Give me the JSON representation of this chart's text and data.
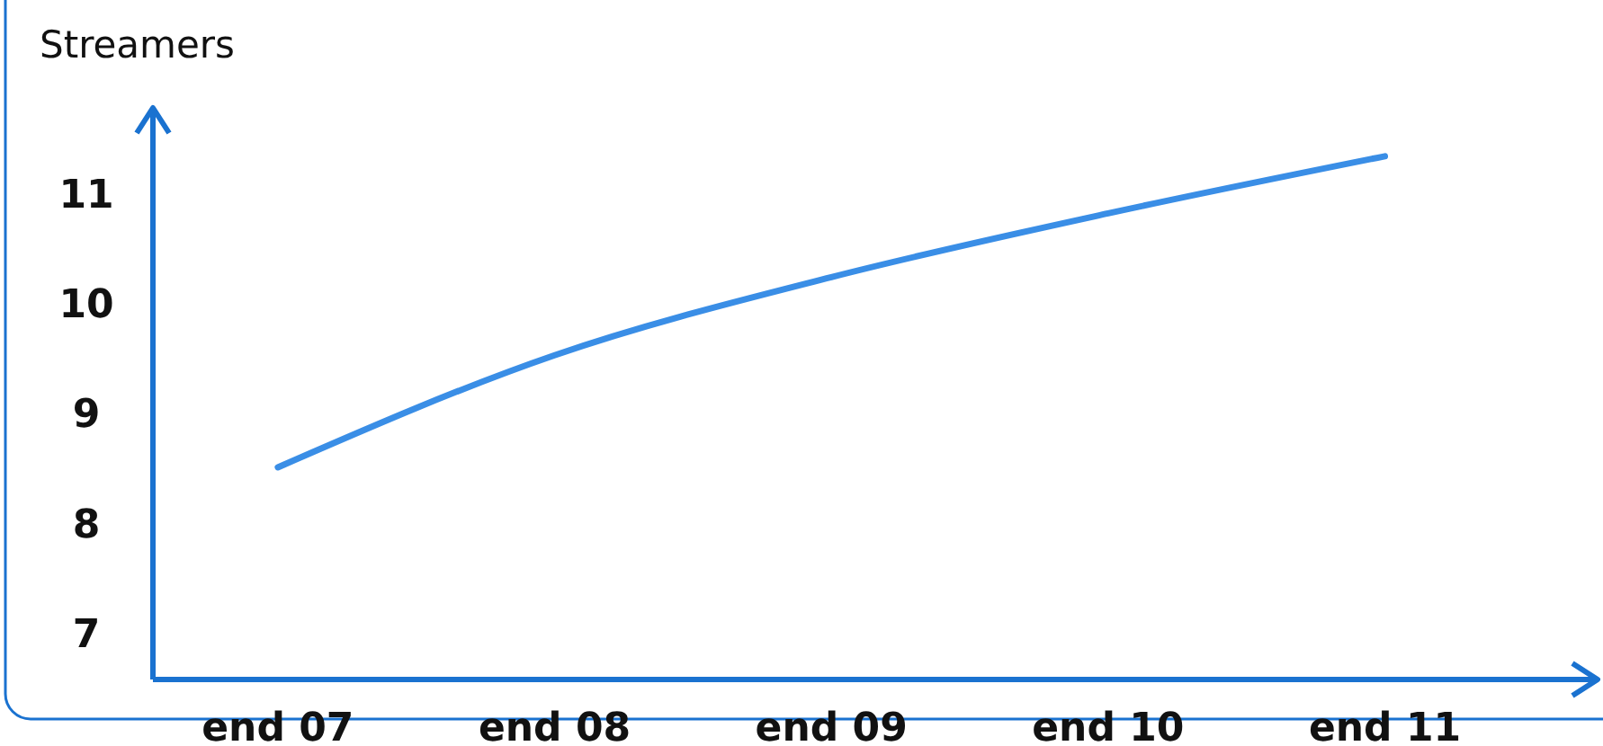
{
  "chart_data": {
    "type": "line",
    "ylabel": "Streamers",
    "categories": [
      "end 07",
      "end 08",
      "end 09",
      "end 10",
      "end 11"
    ],
    "series": [
      {
        "color": "#3a8ee6",
        "values": [
          8.53,
          9.55,
          10.26,
          10.84,
          11.36
        ]
      }
    ],
    "ylim": [
      6.6,
      11.8
    ],
    "yticks": [
      7,
      8,
      9,
      10,
      11
    ],
    "marker": "none",
    "line_style": "solid"
  }
}
